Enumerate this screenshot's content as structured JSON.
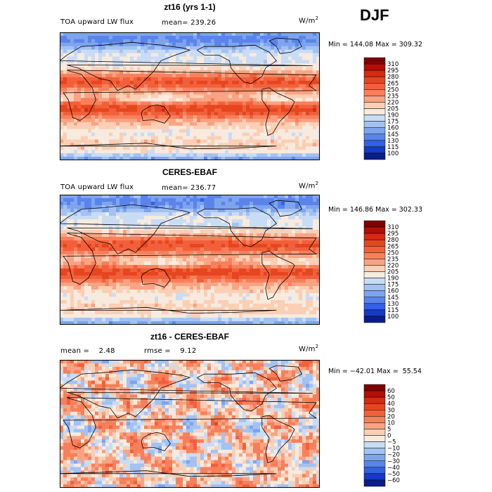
{
  "season": "DJF",
  "units_base": "W/m",
  "units_exp": "2",
  "panels": [
    {
      "title": "zt16 (yrs 1-1)",
      "left_label": "TOA upward LW flux",
      "right_label": "mean= 239.26",
      "minmax": "Min = 144.08 Max = 309.32"
    },
    {
      "title": "CERES-EBAF",
      "left_label": "TOA upward LW flux",
      "right_label": "mean= 236.77",
      "minmax": "Min = 146.86 Max = 302.33"
    },
    {
      "title": "zt16 - CERES-EBAF",
      "left_label": "mean =    2.48",
      "right_label": "rmse =    9.12",
      "minmax": "Min = −42.01 Max =  55.54"
    }
  ],
  "chart_data": [
    {
      "type": "heatmap",
      "title": "zt16 (yrs 1-1)",
      "variable": "TOA upward LW flux",
      "units": "W/m2",
      "mean": 239.26,
      "min": 144.08,
      "max": 309.32,
      "colorbar_levels": [
        310,
        295,
        280,
        265,
        250,
        235,
        220,
        205,
        190,
        175,
        160,
        145,
        130,
        115,
        100
      ],
      "colorbar_labels": [
        "310",
        "295",
        "280",
        "265",
        "250",
        "235",
        "220",
        "205",
        "190",
        "175",
        "160",
        "145",
        "130",
        "115",
        "100"
      ]
    },
    {
      "type": "heatmap",
      "title": "CERES-EBAF",
      "variable": "TOA upward LW flux",
      "units": "W/m2",
      "mean": 236.77,
      "min": 146.86,
      "max": 302.33,
      "colorbar_levels": [
        310,
        295,
        280,
        265,
        250,
        235,
        220,
        205,
        190,
        175,
        160,
        145,
        130,
        115,
        100
      ],
      "colorbar_labels": [
        "310",
        "295",
        "280",
        "265",
        "250",
        "235",
        "220",
        "205",
        "190",
        "175",
        "160",
        "145",
        "130",
        "115",
        "100"
      ]
    },
    {
      "type": "heatmap",
      "title": "zt16 - CERES-EBAF",
      "units": "W/m2",
      "mean": 2.48,
      "rmse": 9.12,
      "min": -42.01,
      "max": 55.54,
      "colorbar_levels": [
        60,
        50,
        40,
        30,
        20,
        10,
        5,
        0,
        -5,
        -10,
        -20,
        -30,
        -40,
        -50,
        -60
      ],
      "colorbar_labels": [
        "60",
        "50",
        "40",
        "30",
        "20",
        "10",
        "5",
        "0",
        "−5",
        "−10",
        "−20",
        "−30",
        "−40",
        "−50",
        "−60"
      ]
    }
  ],
  "colors": {
    "palette": [
      "#7f0000",
      "#b40e06",
      "#d42b13",
      "#e6461f",
      "#f2603b",
      "#f7805b",
      "#f9a383",
      "#fbcfb4",
      "#f7eadf",
      "#c8dcf5",
      "#a3c2f2",
      "#7fa4ee",
      "#5b84ea",
      "#3261e4",
      "#1739c4",
      "#0a1e8a"
    ]
  }
}
